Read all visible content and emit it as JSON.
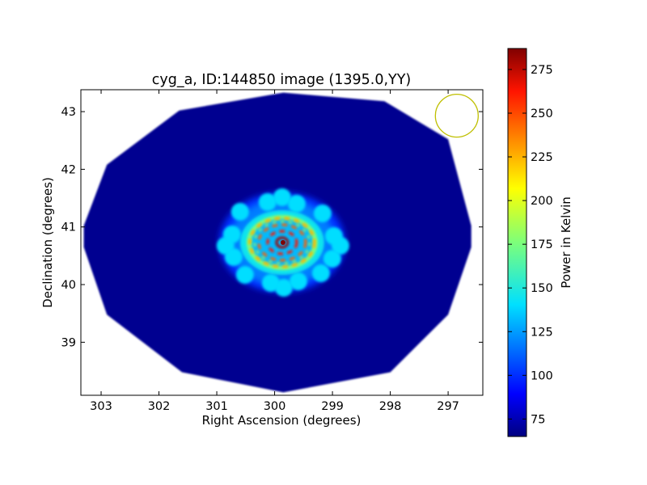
{
  "chart_data": {
    "type": "heatmap",
    "title": "cyg_a, ID:144850 image (1395.0,YY)",
    "xlabel": "Right Ascension (degrees)",
    "ylabel": "Declination (degrees)",
    "xlim": [
      303.35,
      296.4
    ],
    "ylim": [
      38.08,
      43.38
    ],
    "x_axis_inverted": true,
    "xticks": [
      303,
      302,
      301,
      300,
      299,
      298,
      297
    ],
    "yticks": [
      39,
      40,
      41,
      42,
      43
    ],
    "grid": false,
    "colormap": "jet",
    "colorbar": {
      "label": "Power in Kelvin",
      "range": [
        65,
        287
      ],
      "ticks": [
        75,
        100,
        125,
        150,
        175,
        200,
        225,
        250,
        275
      ]
    },
    "background_level_kelvin": 68,
    "source_center": {
      "ra": 299.87,
      "dec": 40.73
    },
    "source_peak_kelvin": 287,
    "coverage_boundary": [
      [
        299.85,
        43.33
      ],
      [
        298.1,
        43.18
      ],
      [
        297.0,
        42.52
      ],
      [
        296.6,
        41.02
      ],
      [
        296.6,
        40.65
      ],
      [
        297.0,
        39.48
      ],
      [
        298.0,
        38.48
      ],
      [
        299.85,
        38.13
      ],
      [
        301.6,
        38.48
      ],
      [
        302.9,
        39.48
      ],
      [
        303.3,
        40.65
      ],
      [
        303.3,
        41.02
      ],
      [
        302.9,
        42.08
      ],
      [
        301.65,
        43.02
      ]
    ],
    "beam_circle": {
      "center_ra": 296.85,
      "center_dec": 42.93,
      "radius_deg": 0.37,
      "color": "#bfbf00"
    }
  }
}
